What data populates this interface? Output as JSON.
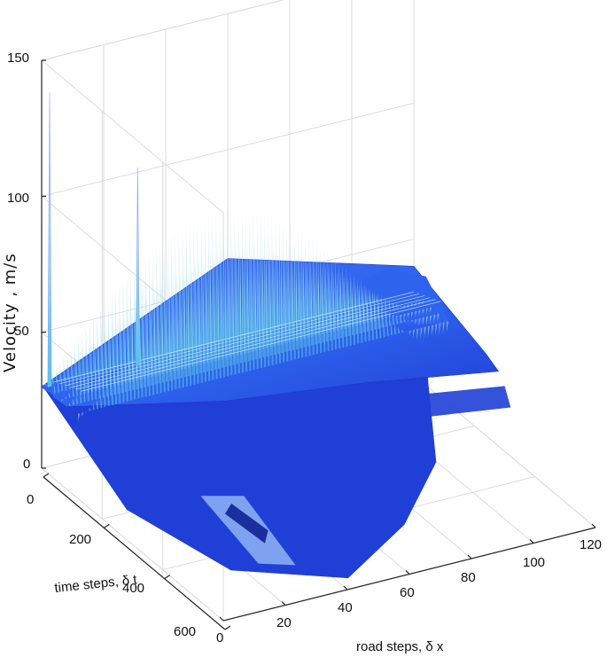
{
  "chart_data": {
    "type": "surface",
    "zlabel": "Velocity , m/s",
    "ylabel": "time steps, δ t",
    "xlabel": "road steps, δ x",
    "z_ticks": [
      "150",
      "100",
      "50",
      "0"
    ],
    "t_ticks": [
      "0",
      "200",
      "400",
      "600"
    ],
    "x_ticks": [
      "0",
      "20",
      "40",
      "60",
      "80",
      "100",
      "120"
    ],
    "zlim": [
      0,
      150
    ],
    "tlim": [
      0,
      600
    ],
    "xlim": [
      0,
      120
    ],
    "grid": true,
    "colormap": "blue-cyan (jet low range)",
    "colors": {
      "surface_dark": "#1f3fd6",
      "surface_mid": "#2e63ee",
      "spike_light": "#9ee6f3",
      "spike_mid": "#52c2e4",
      "spike_peak": "#c8ccd8"
    },
    "features": {
      "base_level_velocity": 30,
      "envelope_peak_velocity": 78,
      "spike_1_velocity": 138,
      "spike_2_velocity": 103
    }
  }
}
